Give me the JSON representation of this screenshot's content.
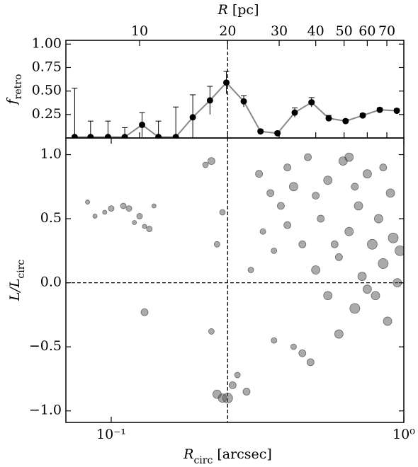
{
  "chart_data": [
    {
      "type": "errorbar",
      "xlabel": {
        "main": "R",
        "rest": " [pc]"
      },
      "ylabel": {
        "main": "f",
        "sub": "retro"
      },
      "x": [
        6.0,
        6.8,
        7.8,
        8.9,
        10.2,
        11.6,
        13.3,
        15.2,
        17.4,
        19.8,
        22.7,
        25.9,
        29.6,
        33.9,
        38.7,
        44.3,
        50.6,
        57.9,
        66.2,
        75.7
      ],
      "values": [
        0.01,
        0.01,
        0.01,
        0.01,
        0.14,
        0.01,
        0.01,
        0.22,
        0.4,
        0.59,
        0.39,
        0.07,
        0.05,
        0.27,
        0.38,
        0.21,
        0.18,
        0.24,
        0.3,
        0.29
      ],
      "errors": [
        0.52,
        0.17,
        0.17,
        0.1,
        0.13,
        0.17,
        0.32,
        0.24,
        0.15,
        0.12,
        0.06,
        0.02,
        0.02,
        0.05,
        0.05,
        0.03,
        0.02,
        0.02,
        0.02,
        0.02
      ],
      "color": "#888888",
      "xlim": [
        5.6,
        80
      ],
      "xscale": "log",
      "xticks": [
        10,
        20,
        30,
        40,
        50,
        60,
        70
      ],
      "ylim": [
        0,
        1.04
      ],
      "yticks": [
        0.25,
        {
          "value": 0.5,
          "label": "0.50"
        },
        0.75,
        {
          "value": 1,
          "label": "1.00"
        }
      ],
      "vline_x": 20
    },
    {
      "type": "scatter",
      "xlabel": {
        "main": "R",
        "sub": "circ",
        "rest": " [arcsec]"
      },
      "ylabel": {
        "main": "L/L",
        "sub": "circ"
      },
      "x": [
        0.083,
        0.088,
        0.095,
        0.1,
        0.11,
        0.115,
        0.12,
        0.125,
        0.13,
        0.135,
        0.14,
        0.13,
        0.21,
        0.22,
        0.23,
        0.24,
        0.22,
        0.23,
        0.24,
        0.25,
        0.26,
        0.27,
        0.29,
        0.3,
        0.32,
        0.33,
        0.35,
        0.36,
        0.38,
        0.4,
        0.42,
        0.45,
        0.47,
        0.5,
        0.52,
        0.55,
        0.55,
        0.6,
        0.6,
        0.62,
        0.65,
        0.68,
        0.7,
        0.72,
        0.75,
        0.78,
        0.8,
        0.82,
        0.85,
        0.88,
        0.9,
        0.92,
        0.95,
        0.97,
        0.48,
        0.45,
        0.42,
        0.36,
        0.4,
        0.5,
        0.58,
        0.68,
        0.75,
        0.85,
        0.65
      ],
      "values": [
        0.63,
        0.52,
        0.55,
        0.58,
        0.6,
        0.58,
        0.47,
        0.52,
        0.44,
        0.42,
        0.6,
        -0.23,
        0.92,
        0.95,
        0.3,
        0.55,
        -0.38,
        -0.87,
        -0.9,
        -0.9,
        -0.8,
        -0.72,
        -0.85,
        0.1,
        0.85,
        0.4,
        0.7,
        0.25,
        0.6,
        0.9,
        0.75,
        0.3,
        0.98,
        0.1,
        0.5,
        -0.1,
        0.8,
        0.2,
        -0.4,
        0.95,
        0.4,
        -0.2,
        0.6,
        0.05,
        0.85,
        0.3,
        -0.1,
        0.5,
        0.15,
        -0.3,
        0.7,
        0.35,
        0.0,
        0.25,
        -0.62,
        -0.55,
        -0.5,
        -0.45,
        0.45,
        0.68,
        0.3,
        0.75,
        -0.05,
        0.9,
        0.98
      ],
      "sizes": [
        3,
        3,
        3,
        4,
        4,
        4,
        3,
        4,
        3,
        4,
        3,
        5,
        4,
        5,
        4,
        4,
        4,
        6,
        6,
        7,
        5,
        4,
        5,
        4,
        5,
        4,
        5,
        4,
        5,
        5,
        6,
        5,
        5,
        6,
        5,
        6,
        6,
        5,
        6,
        6,
        6,
        7,
        6,
        6,
        6,
        7,
        6,
        6,
        7,
        6,
        6,
        7,
        6,
        7,
        5,
        5,
        4,
        4,
        5,
        5,
        5,
        5,
        6,
        5,
        6
      ],
      "color": "#555555",
      "xlim": [
        0.07,
        1
      ],
      "xscale": "log",
      "xticks": [
        {
          "value": 0.1,
          "label": "10⁻¹"
        },
        {
          "value": 1,
          "label": "10⁰"
        }
      ],
      "ylim": [
        -1.09,
        1.13
      ],
      "yticks": [
        {
          "value": -1,
          "label": "−1.0"
        },
        {
          "value": -0.5,
          "label": "−0.5"
        },
        {
          "value": 0,
          "label": "0.0"
        },
        0.5,
        {
          "value": 1,
          "label": "1.0"
        }
      ],
      "vline_x": 0.25,
      "hline_y": 0
    }
  ]
}
